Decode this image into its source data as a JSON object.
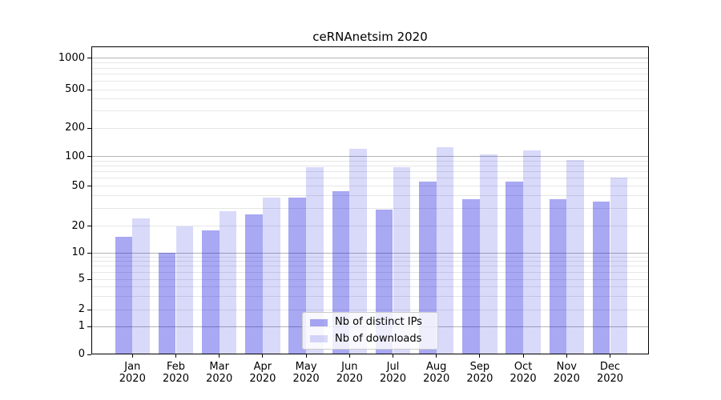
{
  "chart_data": {
    "type": "bar",
    "title": "ceRNAnetsim 2020",
    "categories": [
      "Jan 2020",
      "Feb 2020",
      "Mar 2020",
      "Apr 2020",
      "May 2020",
      "Jun 2020",
      "Jul 2020",
      "Aug 2020",
      "Sep 2020",
      "Oct 2020",
      "Nov 2020",
      "Dec 2020"
    ],
    "series": [
      {
        "name": "Nb of distinct IPs",
        "color": "#0000dd",
        "alpha": 0.34,
        "color_on_white": "#a8a8f4",
        "values": [
          15,
          10,
          18,
          26,
          38,
          44,
          29,
          55,
          37,
          55,
          37,
          35
        ]
      },
      {
        "name": "Nb of downloads",
        "color": "#0000dd",
        "alpha": 0.15,
        "color_on_white": "#d9d9fa",
        "values": [
          24,
          20,
          28,
          38,
          78,
          120,
          78,
          125,
          105,
          115,
          92,
          61
        ]
      }
    ],
    "y_axis": {
      "scale": "symlog",
      "tick_labels": [
        "0",
        "1",
        "2",
        "5",
        "10",
        "20",
        "50",
        "100",
        "200",
        "500",
        "1000"
      ],
      "tick_values": [
        0,
        1,
        2,
        5,
        10,
        20,
        50,
        100,
        200,
        500,
        1000
      ],
      "ylim": [
        0,
        1400
      ]
    },
    "x_axis": {
      "label": "",
      "tick_style": "month over year, two lines"
    },
    "legend": {
      "position": "lower center inside"
    },
    "grid": {
      "major_color": "#b4b4b4",
      "minor_color": "#e6e6e6"
    },
    "colors": {
      "background": "#ffffff",
      "axis": "#000000",
      "text": "#000000"
    }
  }
}
